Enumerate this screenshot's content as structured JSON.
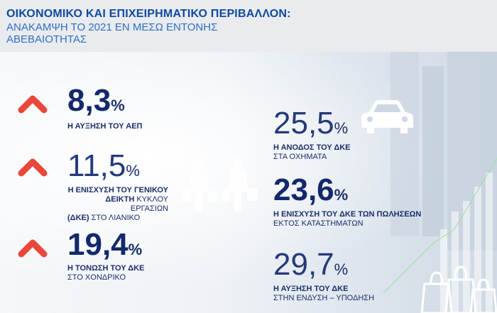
{
  "header": {
    "title": "ΟΙΚΟΝΟΜΙΚΟ ΚΑΙ ΕΠΙΧΕΙΡΗΜΑΤΙΚΟ ΠΕΡΙΒΑΛΛΟΝ:",
    "subtitle": "ΑΝΑΚΑΜΨΗ ΤΟ 2021 ΕΝ ΜΕΣΩ ΕΝΤΟΝΗΣ ΑΒΕΒΑΙΟΤΗΤΑΣ"
  },
  "colors": {
    "title": "#0e4aa0",
    "subtitle": "#2f6fc6",
    "arrow": "#e8473a",
    "number": "#14296b"
  },
  "stats_left": [
    {
      "value": "8,3",
      "unit": "%",
      "label_bold": "Η ΑΥΞΗΣΗ ΤΟΥ ΑΕΠ",
      "label_rest": ""
    },
    {
      "value": "11,5",
      "unit": "%",
      "label_bold_1": "Η ΕΝΙΣΧΥΣΗ ΤΟΥ ΓΕΝΙΚΟΥ",
      "label_bold_2": "ΔΕΙΚΤΗ",
      "label_rest_2": "ΚΥΚΛΟΥ ΕΡΓΑΣΙΩΝ",
      "label_bold_3": "(ΔΚΕ)",
      "label_rest_3": "ΣΤΟ ΛΙΑΝΙΚΟ"
    },
    {
      "value": "19,4",
      "unit": "%",
      "label_bold": "Η ΤΟΝΩΣΗ ΤΟΥ ΔΚΕ",
      "label_rest": "ΣΤΟ ΧΟΝΔΡΙΚΟ"
    }
  ],
  "stats_right": [
    {
      "value": "25,5",
      "unit": "%",
      "label_bold": "Η ΑΝΟΔΟΣ ΤΟΥ ΔΚΕ",
      "label_rest": "ΣΤΑ ΟΧΗΜΑΤΑ"
    },
    {
      "value": "23,6",
      "unit": "%",
      "label_bold": "Η ΕΝΙΣΧΥΣΗ ΤΟΥ ΔΚΕ ΤΩΝ ΠΩΛΗΣΕΩΝ",
      "label_rest": "ΕΚΤΟΣ ΚΑΤΑΣΤΗΜΑΤΩΝ"
    },
    {
      "value": "29,7",
      "unit": "%",
      "label_bold": "Η ΑΥΞΗΣΗ ΤΟΥ ΔΚΕ",
      "label_rest": "ΣΤΗΝ ΕΝΔΥΣΗ – ΥΠΟΔΗΣΗ"
    }
  ],
  "icons": [
    "up-arrow-icon",
    "shoppers-icon",
    "car-icon",
    "shopping-bags-icon"
  ]
}
